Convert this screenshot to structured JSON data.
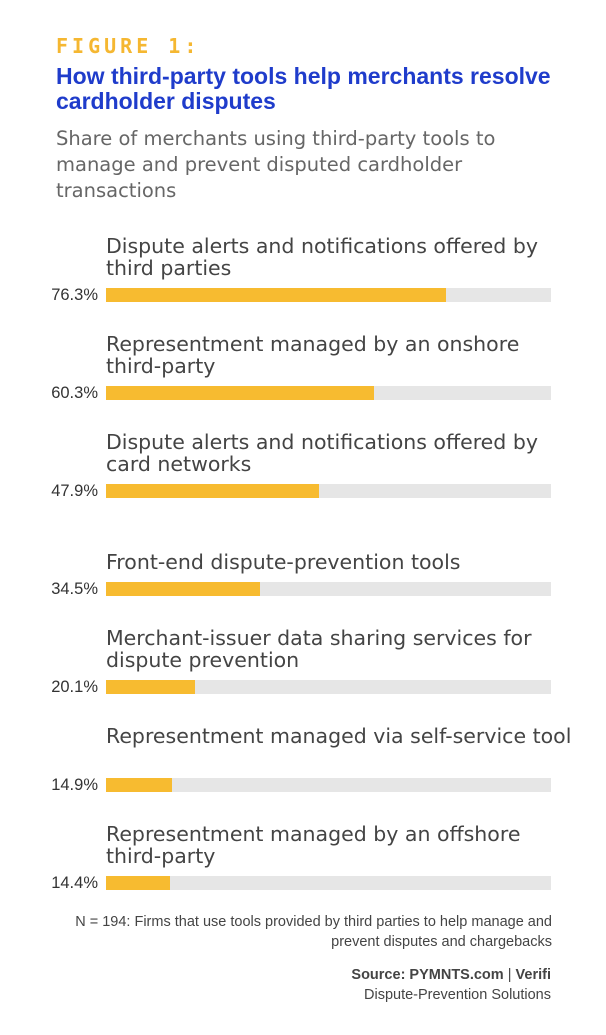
{
  "figure_label": "FIGURE 1:",
  "title": "How third-party tools help merchants resolve cardholder disputes",
  "subtitle": "Share of merchants using third-party tools to manage and prevent disputed cardholder transactions",
  "note": "N = 194: Firms that use tools provided by third parties to help manage and prevent disputes and chargebacks",
  "source": {
    "prefix": "Source: PYMNTS.com",
    "separator": "|",
    "partner": "Verifi",
    "product": "Dispute-Prevention Solutions"
  },
  "colors": {
    "figure_label": "#f5b731",
    "title": "#1f3ccb",
    "bar": "#f7bb30",
    "track": "#e6e6e6"
  },
  "chart_data": {
    "type": "bar",
    "orientation": "horizontal",
    "xlim": [
      0,
      100
    ],
    "unit": "%",
    "categories": [
      "Dispute alerts and notifications offered by third parties",
      "Representment managed by an onshore third-party",
      "Dispute alerts and notifications offered by card networks",
      "Front-end dispute-prevention tools",
      "Merchant-issuer data sharing services for dispute prevention",
      "Representment managed via self-service tool",
      "Representment managed by an offshore third-party"
    ],
    "values": [
      76.3,
      60.3,
      47.9,
      34.5,
      20.1,
      14.9,
      14.4
    ],
    "value_labels": [
      "76.3%",
      "60.3%",
      "47.9%",
      "34.5%",
      "20.1%",
      "14.9%",
      "14.4%"
    ]
  }
}
